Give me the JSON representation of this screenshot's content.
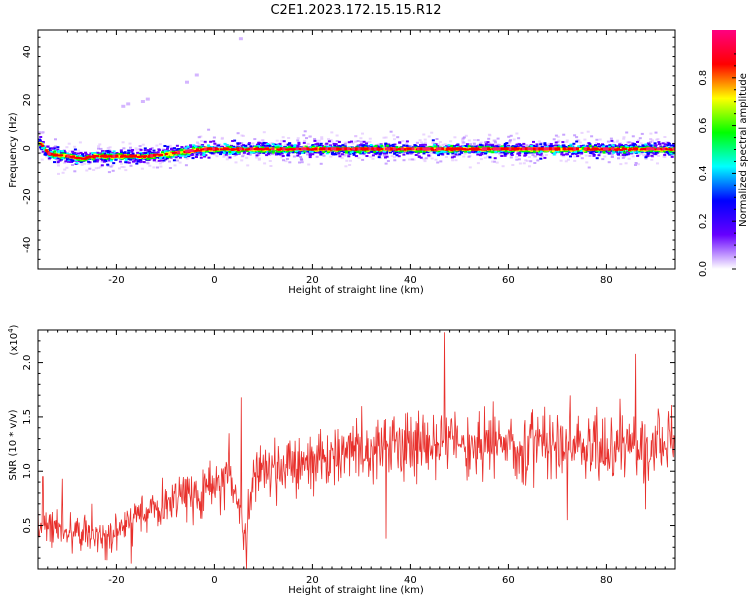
{
  "title": "C2E1.2023.172.15.15.R12",
  "colors": {
    "snr_line": "#e8302c",
    "axes": "#000000"
  },
  "chart_data": [
    {
      "type": "heatmap",
      "xlabel": "Height of straight line (km)",
      "ylabel": "Frequency (Hz)",
      "xlim": [
        -36,
        94
      ],
      "ylim": [
        -50,
        49
      ],
      "xticks": [
        -20,
        0,
        20,
        40,
        60,
        80
      ],
      "yticks": [
        -40,
        -20,
        0,
        20,
        40
      ],
      "xtick_labels": [
        "-20",
        "0",
        "20",
        "40",
        "60",
        "80"
      ],
      "ytick_labels": [
        "-40",
        "-20",
        "0",
        "20",
        "40"
      ],
      "ridge": {
        "x": [
          -36,
          -34,
          -30,
          -27,
          -25,
          -22,
          -18,
          -14,
          -10,
          -6,
          -2,
          2,
          5,
          8,
          12,
          20,
          30,
          40,
          50,
          60,
          70,
          80,
          90,
          94
        ],
        "y": [
          3,
          -2,
          -3,
          -4,
          -3,
          -3,
          -3,
          -3,
          -2,
          -1,
          0,
          0,
          0,
          0,
          0,
          0,
          0,
          0,
          0,
          0,
          0,
          0,
          0,
          0
        ]
      },
      "scatter_points": {
        "x": [
          -19,
          -18,
          -15,
          -14,
          -6,
          -4,
          5
        ],
        "y": [
          18,
          19,
          20,
          21,
          28,
          31,
          46
        ]
      },
      "colorbar": {
        "label": "Normalized spectral amplitude",
        "range": [
          0,
          1
        ],
        "ticks": [
          0.0,
          0.2,
          0.4,
          0.6,
          0.8
        ],
        "tick_labels": [
          "0.0",
          "0.2",
          "0.4",
          "0.6",
          "0.8"
        ],
        "colormap": [
          "#ffffff",
          "#6600ff",
          "#0000ff",
          "#00ffff",
          "#00ff00",
          "#ffff00",
          "#ff0000",
          "#ff0080"
        ]
      }
    },
    {
      "type": "line",
      "xlabel": "Height of straight line (km)",
      "ylabel": "SNR (10 * v/v)",
      "multiplier_label": "(x10",
      "multiplier_exp": "4",
      "multiplier_close": ")",
      "xlim": [
        -36,
        94
      ],
      "ylim": [
        0.1,
        2.3
      ],
      "units_scale": 10000,
      "xticks": [
        -20,
        0,
        20,
        40,
        60,
        80
      ],
      "yticks": [
        0.5,
        1.0,
        1.5,
        2.0
      ],
      "xtick_labels": [
        "-20",
        "0",
        "20",
        "40",
        "60",
        "80"
      ],
      "ytick_labels": [
        "0.5",
        "1.0",
        "1.5",
        "2.0"
      ],
      "series": [
        {
          "trend_x": [
            -36,
            -30,
            -25,
            -22,
            -18,
            -14,
            -10,
            -6,
            -2,
            2,
            5,
            6,
            8,
            12,
            20,
            30,
            40,
            50,
            60,
            70,
            80,
            90,
            94
          ],
          "trend_y": [
            0.5,
            0.45,
            0.42,
            0.35,
            0.5,
            0.62,
            0.7,
            0.8,
            0.85,
            0.92,
            0.8,
            0.3,
            0.95,
            1.0,
            1.1,
            1.2,
            1.22,
            1.25,
            1.25,
            1.25,
            1.25,
            1.25,
            1.22
          ],
          "spikes_x": [
            -35,
            -31,
            -25,
            -21,
            -17,
            3,
            5.5,
            6.5,
            35,
            47,
            72,
            86,
            88
          ],
          "spikes_y": [
            0.95,
            0.93,
            0.7,
            0.25,
            0.15,
            1.35,
            1.68,
            0.1,
            0.38,
            2.28,
            0.55,
            2.08,
            0.65
          ]
        }
      ]
    }
  ]
}
